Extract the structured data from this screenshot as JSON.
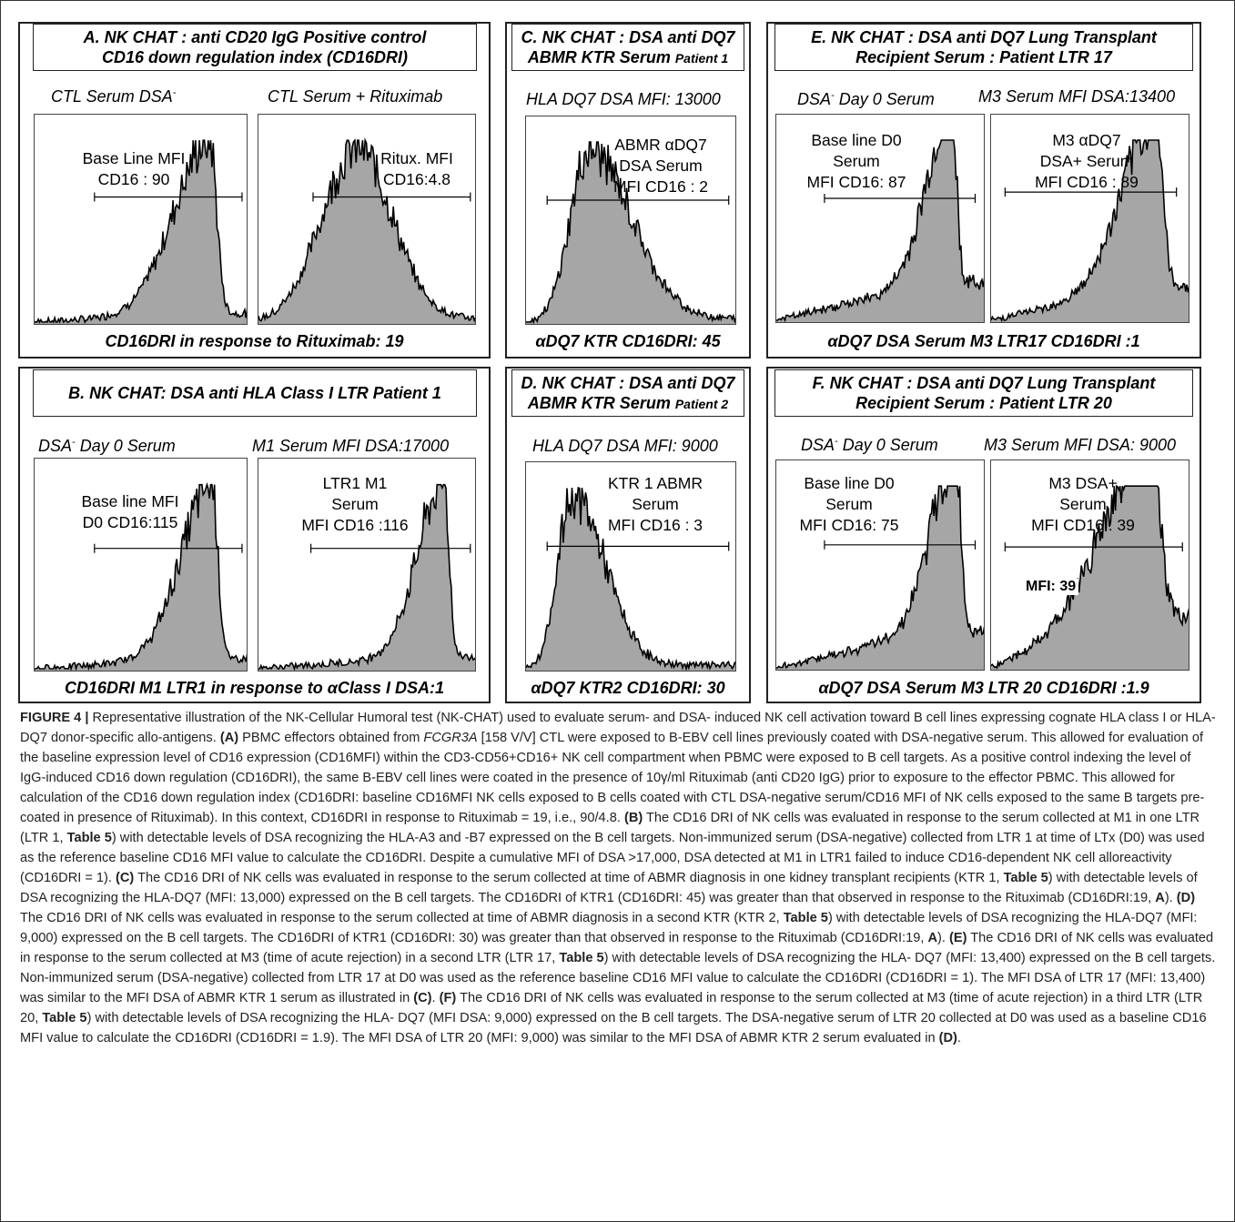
{
  "panels": {
    "A": {
      "title_l1": "A. NK CHAT : anti CD20 IgG  Positive control",
      "title_l2": "CD16 down regulation index  (CD16DRI)",
      "sub_left_main": "CTL Serum DSA",
      "sub_left_sup": "-",
      "sub_right": "CTL Serum + Rituximab",
      "label_left_l1": "Base Line MFI",
      "label_left_l2": "CD16 : 90",
      "label_right_l1": "Ritux. MFI",
      "label_right_l2": "CD16:4.8",
      "footer": "CD16DRI in response to Rituximab: 19"
    },
    "B": {
      "title": "B. NK CHAT: DSA anti HLA Class I  LTR Patient 1",
      "sub_left_main": "DSA",
      "sub_left_sup": "-",
      "sub_left_rest": " Day 0 Serum",
      "sub_right": "M1 Serum MFI DSA:17000",
      "label_left_l1": "Base line MFI",
      "label_left_l2": "D0 CD16:115",
      "label_right_l1": "LTR1 M1",
      "label_right_l2": "Serum",
      "label_right_l3": "MFI CD16 :116",
      "footer": "CD16DRI M1 LTR1 in response to αClass I DSA:1"
    },
    "C": {
      "title_l1": "C. NK CHAT : DSA anti DQ7",
      "title_l2_main": "ABMR KTR Serum ",
      "title_l2_small": "Patient 1",
      "sub": "HLA DQ7 DSA MFI: 13000",
      "label_l1": "ABMR αDQ7",
      "label_l2": "DSA Serum",
      "label_l3": "MFI  CD16 : 2",
      "footer": "αDQ7 KTR CD16DRI: 45"
    },
    "D": {
      "title_l1": "D. NK CHAT : DSA anti DQ7",
      "title_l2_main": "ABMR KTR Serum ",
      "title_l2_small": "Patient 2",
      "sub": "HLA DQ7 DSA MFI: 9000",
      "label_l1": "KTR 1 ABMR",
      "label_l2": "Serum",
      "label_l3": "MFI  CD16 : 3",
      "footer": "αDQ7 KTR2  CD16DRI: 30"
    },
    "E": {
      "title_l1": "E. NK CHAT : DSA anti DQ7 Lung Transplant",
      "title_l2": "Recipient Serum : Patient LTR 17",
      "sub_left_main": "DSA",
      "sub_left_sup": "-",
      "sub_left_rest": " Day 0 Serum",
      "sub_right": "M3 Serum MFI DSA:13400",
      "label_left_l1": "Base line D0",
      "label_left_l2": "Serum",
      "label_left_l3": "MFI CD16: 87",
      "label_right_l1": "M3 αDQ7",
      "label_right_l2": "DSA+ Serum",
      "label_right_l3": "MFI CD16 : 89",
      "footer": "αDQ7 DSA Serum M3 LTR17 CD16DRI :1"
    },
    "F": {
      "title_l1": "F. NK CHAT : DSA anti DQ7 Lung Transplant",
      "title_l2": "Recipient Serum : Patient LTR 20",
      "sub_left_main": "DSA",
      "sub_left_sup": "-",
      "sub_left_rest": " Day 0 Serum",
      "sub_right": "M3 Serum MFI DSA: 9000",
      "label_left_l1": "Base line D0",
      "label_left_l2": "Serum",
      "label_left_l3": "MFI CD16: 75",
      "label_right_l1": "M3 DSA+",
      "label_right_l2": "Serum",
      "label_right_l3": "MFI CD16 : 39",
      "mfi_note": "MFI: 39",
      "footer": "αDQ7 DSA Serum M3 LTR 20 CD16DRI :1.9"
    }
  },
  "histograms": {
    "fill_color": "#a6a6a6",
    "line_color": "#000000",
    "A_left": {
      "peak": 0.82,
      "width": 0.07,
      "skew": "left",
      "tail": 0.05
    },
    "A_right": {
      "peak": 0.45,
      "width": 0.16,
      "skew": "none",
      "tail": 0.02
    },
    "B_left": {
      "peak": 0.83,
      "width": 0.06,
      "skew": "left",
      "tail": 0.06
    },
    "B_right": {
      "peak": 0.85,
      "width": 0.05,
      "skew": "left",
      "tail": 0.07
    },
    "C": {
      "peak": 0.3,
      "width": 0.09,
      "skew": "right",
      "tail": 0.02
    },
    "D": {
      "peak": 0.22,
      "width": 0.07,
      "skew": "right",
      "tail": 0.02
    },
    "E_left": {
      "peak": 0.84,
      "width": 0.05,
      "skew": "left",
      "tail": 0.22
    },
    "E_right": {
      "peak": 0.83,
      "width": 0.07,
      "skew": "left",
      "tail": 0.2
    },
    "F_left": {
      "peak": 0.86,
      "width": 0.05,
      "skew": "left",
      "tail": 0.22
    },
    "F_right": {
      "peak": 0.8,
      "width": 0.1,
      "skew": "left",
      "tail": 0.3
    }
  },
  "caption": {
    "fig_label": "FIGURE 4 |",
    "p1": " Representative illustration of the NK-Cellular Humoral test (NK-CHAT) used to evaluate serum- and DSA- induced NK cell activation toward B cell lines expressing cognate HLA class I or HLA-DQ7 donor-specific allo-antigens. ",
    "lA": "(A)",
    "p2": " PBMC effectors obtained from ",
    "gene": "FCGR3A",
    "p3": " [158 V/V] CTL were exposed to B-EBV cell lines previously coated with DSA-negative serum. This allowed for evaluation of the baseline expression level of CD16 expression (CD16MFI) within the CD3-CD56+CD16+ NK cell compartment when PBMC were exposed to B cell targets. As a positive control indexing the level of IgG-induced CD16 down regulation (CD16DRI), the same B-EBV cell lines were coated in the presence of 10γ/ml Rituximab (anti CD20 IgG) prior to exposure to the effector PBMC. This allowed for calculation of the CD16 down regulation index (CD16DRI: baseline CD16MFI NK cells exposed to B cells coated with CTL DSA-negative serum/CD16 MFI of NK cells exposed to the same B targets pre-coated in presence of Rituximab). In this context, CD16DRI in response to Rituximab = 19, i.e., 90/4.8. ",
    "lB": "(B)",
    "p4": " The CD16 DRI of NK cells was evaluated in response to the serum collected at M1 in one LTR (LTR 1, ",
    "t5a": "Table 5",
    "p5": ") with detectable levels of DSA recognizing the HLA-A3 and -B7 expressed on the B cell targets. Non-immunized serum (DSA-negative) collected from LTR 1 at time of LTx (D0) was used as the reference baseline CD16 MFI value to calculate the CD16DRI. Despite a cumulative MFI of DSA >17,000, DSA detected at M1 in LTR1 failed to induce CD16-dependent NK cell alloreactivity (CD16DRI = 1). ",
    "lC": "(C)",
    "p6": " The CD16 DRI of NK cells was evaluated in response to the serum collected at time of ABMR diagnosis in one kidney transplant recipients (KTR 1, ",
    "t5b": "Table 5",
    "p7": ") with detectable levels of DSA recognizing the HLA-DQ7 (MFI: 13,000) expressed on the B cell targets. The CD16DRI of KTR1 (CD16DRI: 45) was greater than that observed in response to the Rituximab (CD16DRI:19, ",
    "Aa": "A",
    "p8": "). ",
    "lD": "(D)",
    "p9": " The CD16 DRI of NK cells was evaluated in response to the serum collected at time of ABMR diagnosis in a second KTR (KTR 2, ",
    "t5c": "Table 5",
    "p10": ") with detectable levels of DSA recognizing the HLA-DQ7 (MFI: 9,000) expressed on the B cell targets. The CD16DRI of KTR1 (CD16DRI: 30) was greater than that observed in response to the Rituximab (CD16DRI:19, ",
    "Ab": "A",
    "p11": "). ",
    "lE": "(E)",
    "p12": " The CD16 DRI of NK cells was evaluated in response to the serum collected at M3 (time of acute rejection) in a second LTR (LTR 17, ",
    "t5d": "Table 5",
    "p13": ") with detectable levels of DSA recognizing the HLA- DQ7 (MFI: 13,400) expressed on the B cell targets. Non-immunized serum (DSA-negative) collected from LTR 17 at D0 was used as the reference baseline CD16 MFI value to calculate the CD16DRI (CD16DRI = 1). The MFI DSA of LTR 17 (MFI: 13,400) was similar to the MFI DSA of ABMR KTR 1 serum as illustrated in ",
    "lC2": "(C)",
    "p14": ". ",
    "lF": "(F)",
    "p15": " The CD16 DRI of NK cells was evaluated in response to the serum collected at M3 (time of acute rejection) in a third LTR (LTR 20, ",
    "t5e": "Table 5",
    "p16": ") with detectable levels of DSA recognizing the HLA- DQ7 (MFI DSA: 9,000) expressed on the B cell targets. The DSA-negative serum of LTR 20 collected at D0 was used as a baseline CD16 MFI value to calculate the CD16DRI (CD16DRI = 1.9). The MFI DSA of LTR 20 (MFI: 9,000) was similar to the MFI DSA of ABMR KTR 2 serum evaluated in ",
    "lD2": "(D)",
    "p17": "."
  }
}
